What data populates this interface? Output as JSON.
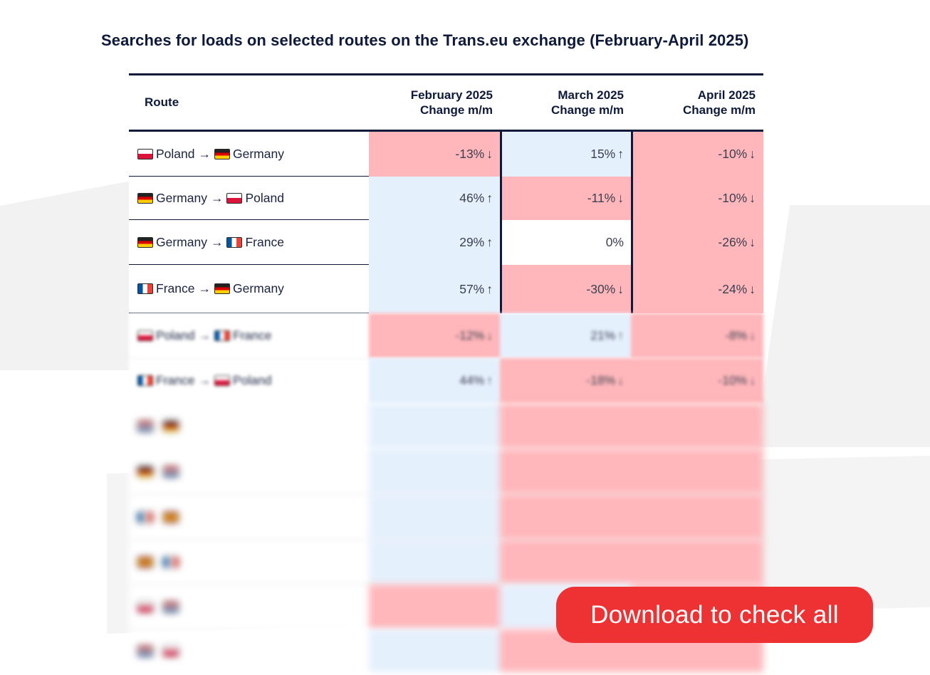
{
  "title": "Searches for loads on selected routes on the Trans.eu exchange (February-April 2025)",
  "table": {
    "headers": {
      "route": "Route",
      "feb_line1": "February 2025",
      "feb_line2": "Change m/m",
      "mar_line1": "March 2025",
      "mar_line2": "Change m/m",
      "apr_line1": "April 2025",
      "apr_line2": "Change m/m"
    },
    "rows": [
      {
        "from": "Poland",
        "to": "Germany",
        "arrow": "→",
        "feb": "-13%",
        "feb_dir": "↓",
        "mar": "15%",
        "mar_dir": "↑",
        "apr": "-10%",
        "apr_dir": "↓"
      },
      {
        "from": "Germany",
        "to": "Poland",
        "arrow": "→",
        "feb": "46%",
        "feb_dir": "↑",
        "mar": "-11%",
        "mar_dir": "↓",
        "apr": "-10%",
        "apr_dir": "↓"
      },
      {
        "from": "Germany",
        "to": "France",
        "arrow": "→",
        "feb": "29%",
        "feb_dir": "↑",
        "mar": "0%",
        "mar_dir": "",
        "apr": "-26%",
        "apr_dir": "↓"
      },
      {
        "from": "France",
        "to": "Germany",
        "arrow": "→",
        "feb": "57%",
        "feb_dir": "↑",
        "mar": "-30%",
        "mar_dir": "↓",
        "apr": "-24%",
        "apr_dir": "↓"
      },
      {
        "from": "Poland",
        "to": "France",
        "arrow": "→",
        "feb": "-12%",
        "feb_dir": "↓",
        "mar": "21%",
        "mar_dir": "↑",
        "apr": "-8%",
        "apr_dir": "↓"
      },
      {
        "from": "France",
        "to": "Poland",
        "arrow": "→",
        "feb": "44%",
        "feb_dir": "↑",
        "mar": "-18%",
        "mar_dir": "↓",
        "apr": "-10%",
        "apr_dir": "↓"
      }
    ]
  },
  "colors": {
    "decrease": "#ffb7bb",
    "increase": "#e5f0fd",
    "rule": "#0f1a3a",
    "cta": "#ee3234"
  },
  "cta": {
    "label": "Download to check all"
  }
}
